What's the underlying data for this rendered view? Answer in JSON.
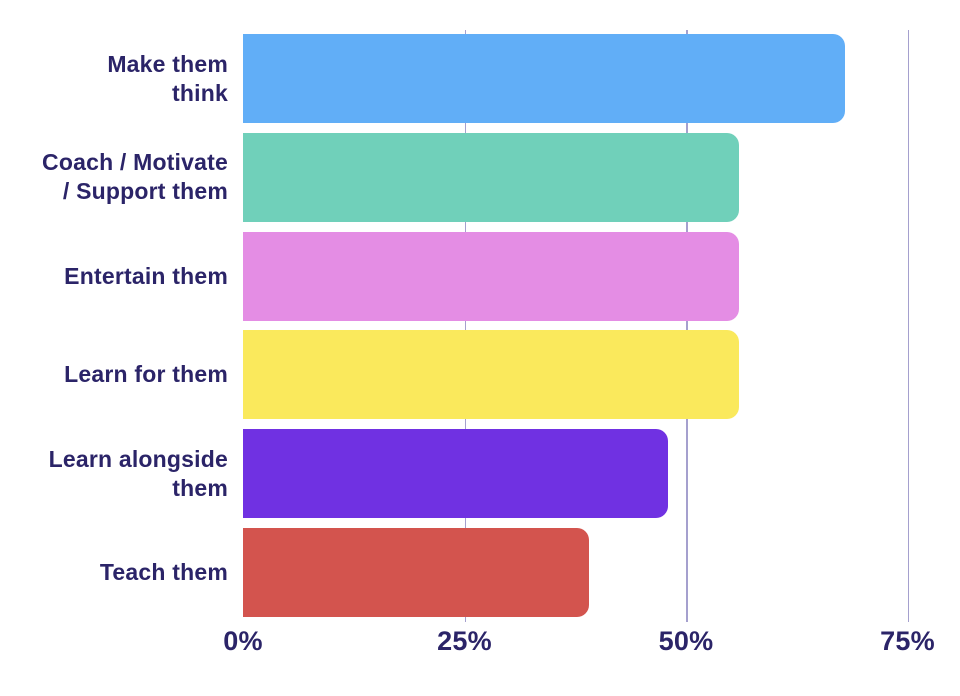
{
  "chart_data": {
    "type": "bar",
    "orientation": "horizontal",
    "title": "",
    "categories": [
      "Make them think",
      "Coach / Motivate / Support them",
      "Entertain them",
      "Learn for them",
      "Learn alongside them",
      "Teach them"
    ],
    "display_labels": [
      "Make them\nthink",
      "Coach / Motivate\n/ Support them",
      "Entertain them",
      "Learn for them",
      "Learn alongside\nthem",
      "Teach them"
    ],
    "values": [
      68,
      56,
      56,
      56,
      48,
      39
    ],
    "bar_colors": [
      "#61AEF7",
      "#70D0BA",
      "#E48DE4",
      "#FAE95C",
      "#7031E2",
      "#D3544E"
    ],
    "x_ticks": [
      {
        "label": "0%",
        "value": 0
      },
      {
        "label": "25%",
        "value": 25
      },
      {
        "label": "50%",
        "value": 50
      },
      {
        "label": "75%",
        "value": 75
      }
    ],
    "xlim": [
      0,
      77.5
    ],
    "xlabel": "",
    "ylabel": "",
    "grid": "vertical",
    "legend": "none",
    "colors": {
      "label_text": "#2B2468",
      "gridline": "#A5A0CE",
      "background": "#FFFFFF"
    }
  }
}
